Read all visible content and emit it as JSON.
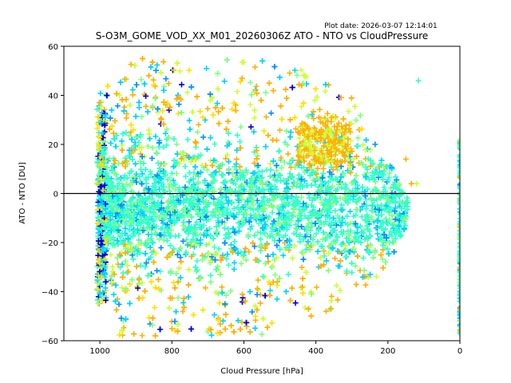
{
  "chart_data": {
    "type": "scatter",
    "title": "S-O3M_GOME_VOD_XX_M01_20260306Z ATO - NTO vs CloudPressure",
    "subtitle": "Plot date: 2026-03-07 12:14:01",
    "xlabel": "Cloud Pressure [hPa]",
    "ylabel": "ATO - NTO [DU]",
    "xlim": [
      1100,
      0
    ],
    "ylim": [
      -60,
      60
    ],
    "x_inverted": true,
    "xticks": [
      1000,
      800,
      600,
      400,
      200,
      0
    ],
    "yticks": [
      60,
      40,
      20,
      0,
      -20,
      -40,
      -60
    ],
    "xtick_labels": [
      "1000",
      "800",
      "600",
      "400",
      "200",
      "0"
    ],
    "ytick_labels": [
      "60",
      "40",
      "20",
      "0",
      "−20",
      "−40",
      "−60"
    ],
    "reference_line": {
      "y": 0,
      "color": "#000000"
    },
    "marker": "+",
    "grid": false,
    "legend": "none",
    "colormap": [
      "#0000dd",
      "#0090ff",
      "#00d4ff",
      "#33ffcc",
      "#80ff80",
      "#ccff33",
      "#ffe000",
      "#ffb000"
    ],
    "point_clusters": [
      {
        "name": "main-body",
        "x_range": [
          1000,
          150
        ],
        "y_center": -5,
        "y_spread": 25,
        "dominant_color": "#33ffcc"
      },
      {
        "name": "upper-scatter",
        "x_range": [
          1000,
          250
        ],
        "y_center": 25,
        "y_spread": 30,
        "dominant_color": "#ffb000"
      },
      {
        "name": "lower-scatter",
        "x_range": [
          1000,
          250
        ],
        "y_center": -40,
        "y_spread": 18,
        "dominant_color": "#ffb000"
      },
      {
        "name": "upper-orange-patch",
        "x_range": [
          450,
          300
        ],
        "y_center": 20,
        "y_spread": 10,
        "dominant_color": "#ffb000"
      },
      {
        "name": "zero-pressure-column",
        "x_range": [
          2,
          0
        ],
        "y_center": -15,
        "y_spread": 40,
        "dominant_color": "#33ffcc"
      }
    ],
    "outliers": [
      {
        "x": 150,
        "y": 14
      },
      {
        "x": 120,
        "y": 4
      },
      {
        "x": 135,
        "y": 4
      },
      {
        "x": 115,
        "y": 46
      }
    ]
  }
}
